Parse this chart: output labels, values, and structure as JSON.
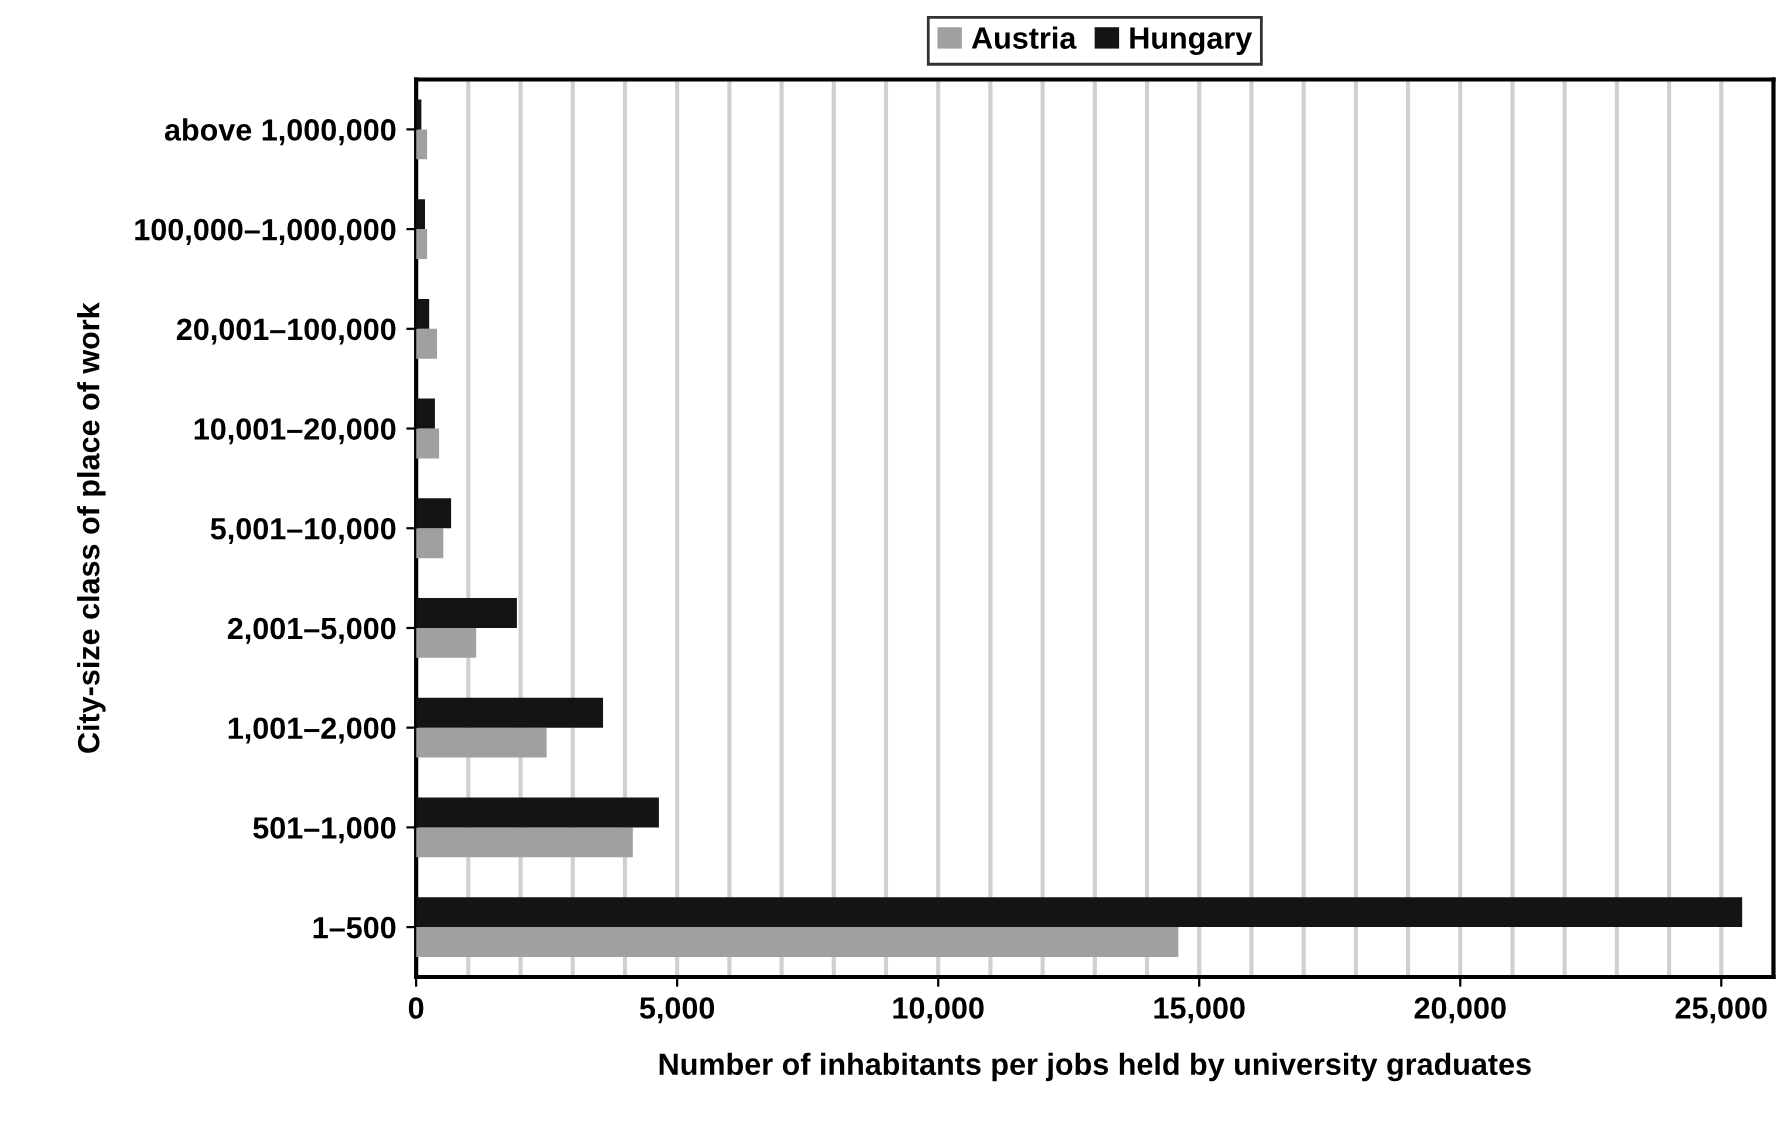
{
  "chart_data": {
    "type": "bar",
    "orientation": "horizontal",
    "xlabel": "Number of inhabitants per jobs held by university graduates",
    "ylabel": "City-size class of place of work",
    "categories": [
      "above 1,000,000",
      "100,000–1,000,000",
      "20,001–100,000",
      "10,001–20,000",
      "5,001–10,000",
      "2,001–5,000",
      "1,001–2,000",
      "501–1,000",
      "1–500"
    ],
    "series": [
      {
        "name": "Austria",
        "color": "#a0a0a0",
        "values": [
          210,
          210,
          400,
          440,
          520,
          1150,
          2500,
          4150,
          14600
        ]
      },
      {
        "name": "Hungary",
        "color": "#141414",
        "values": [
          100,
          170,
          250,
          360,
          670,
          1930,
          3580,
          4650,
          25400
        ]
      }
    ],
    "xlim": [
      0,
      26000
    ],
    "xticks": [
      0,
      {
        "value": 5000,
        "label": "5,000"
      },
      {
        "value": 10000,
        "label": "10,000"
      },
      {
        "value": 15000,
        "label": "15,000"
      },
      {
        "value": 20000,
        "label": "20,000"
      },
      {
        "value": 25000,
        "label": "25,000"
      }
    ],
    "grid": "x",
    "legend": "top"
  }
}
